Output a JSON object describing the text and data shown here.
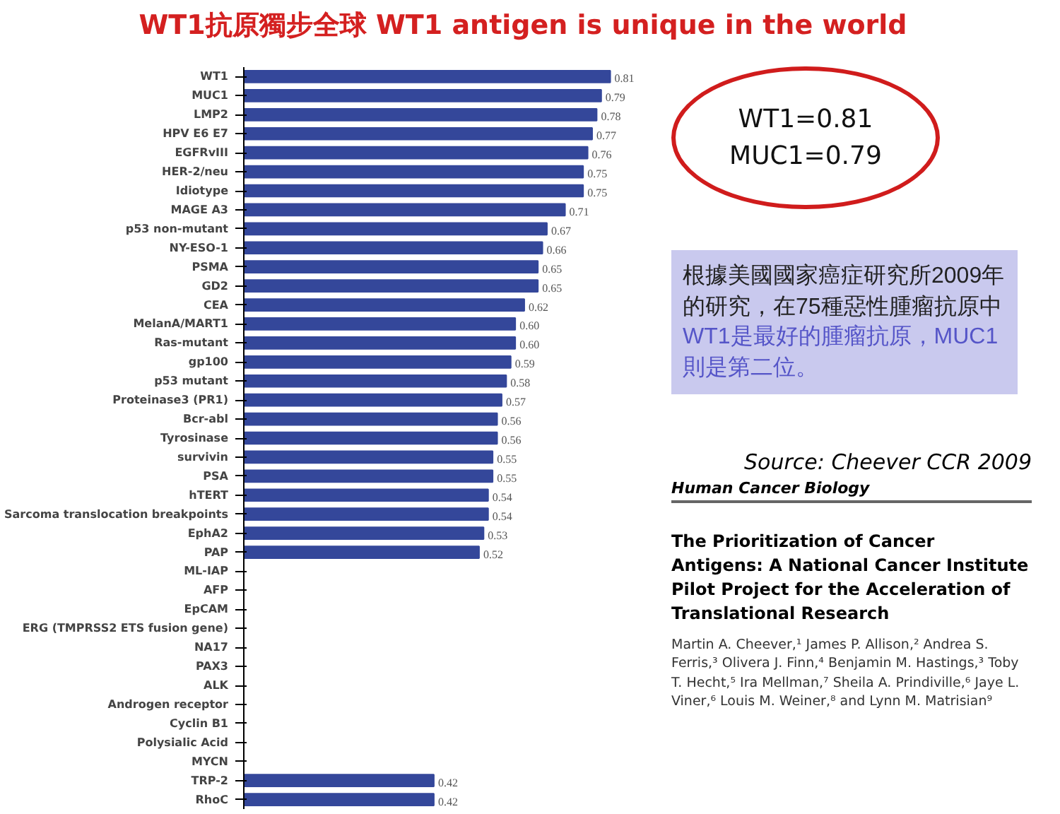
{
  "chart_data": {
    "type": "bar",
    "orientation": "horizontal",
    "title": "WT1抗原獨步全球 WT1 antigen is unique in the world",
    "categories": [
      "WT1",
      "MUC1",
      "LMP2",
      "HPV E6 E7",
      "EGFRvIII",
      "HER-2/neu",
      "Idiotype",
      "MAGE A3",
      "p53 non-mutant",
      "NY-ESO-1",
      "PSMA",
      "GD2",
      "CEA",
      "MelanA/MART1",
      "Ras-mutant",
      "gp100",
      "p53 mutant",
      "Proteinase3 (PR1)",
      "Bcr-abl",
      "Tyrosinase",
      "survivin",
      "PSA",
      "hTERT",
      "Sarcoma translocation breakpoints",
      "EphA2",
      "PAP",
      "ML-IAP",
      "AFP",
      "EpCAM",
      "ERG (TMPRSS2 ETS fusion gene)",
      "NA17",
      "PAX3",
      "ALK",
      "Androgen receptor",
      "Cyclin B1",
      "Polysialic Acid",
      "MYCN",
      "TRP-2",
      "RhoC"
    ],
    "values": [
      0.81,
      0.79,
      0.78,
      0.77,
      0.76,
      0.75,
      0.75,
      0.71,
      0.67,
      0.66,
      0.65,
      0.65,
      0.62,
      0.6,
      0.6,
      0.59,
      0.58,
      0.57,
      0.56,
      0.56,
      0.55,
      0.55,
      0.54,
      0.54,
      0.53,
      0.52,
      null,
      null,
      null,
      null,
      null,
      null,
      null,
      null,
      null,
      null,
      null,
      0.42,
      0.42
    ],
    "value_labels": [
      "0.81",
      "0.79",
      "0.78",
      "0.77",
      "0.76",
      "0.75",
      "0.75",
      "0.71",
      "0.67",
      "0.66",
      "0.65",
      "0.65",
      "0.62",
      "0.60",
      "0.60",
      "0.59",
      "0.58",
      "0.57",
      "0.56",
      "0.56",
      "0.55",
      "0.55",
      "0.54",
      "0.54",
      "0.53",
      "0.52",
      null,
      null,
      null,
      null,
      null,
      null,
      null,
      null,
      null,
      null,
      null,
      "0.42",
      "0.42"
    ],
    "color": "#34479a",
    "tick_labels": "y",
    "annotations": [
      "WT1=0.81\nMUC1=0.79",
      "根據美國國家癌症研究所2009年的研究，在75種惡性腫瘤抗原中",
      "WT1是最好的腫瘤抗原，MUC1則是第二位。",
      "Human Cancer Biology",
      "Source: Cheever CCR 2009",
      "The Prioritization of Cancer Antigens: A National Cancer Institute Pilot Project for the Acceleration of Translational Research",
      "Martin A. Cheever,¹ James P. Allison,² Andrea S. Ferris,³ Olivera J. Finn,⁴ Benjamin M. Hastings,³ Toby T. Hecht,⁵ Ira Mellman,⁷ Sheila A. Prindiville,⁶ Jaye L. Viner,⁶ Louis M. Weiner,⁸ and Lynn M. Matrisian⁹"
    ]
  }
}
